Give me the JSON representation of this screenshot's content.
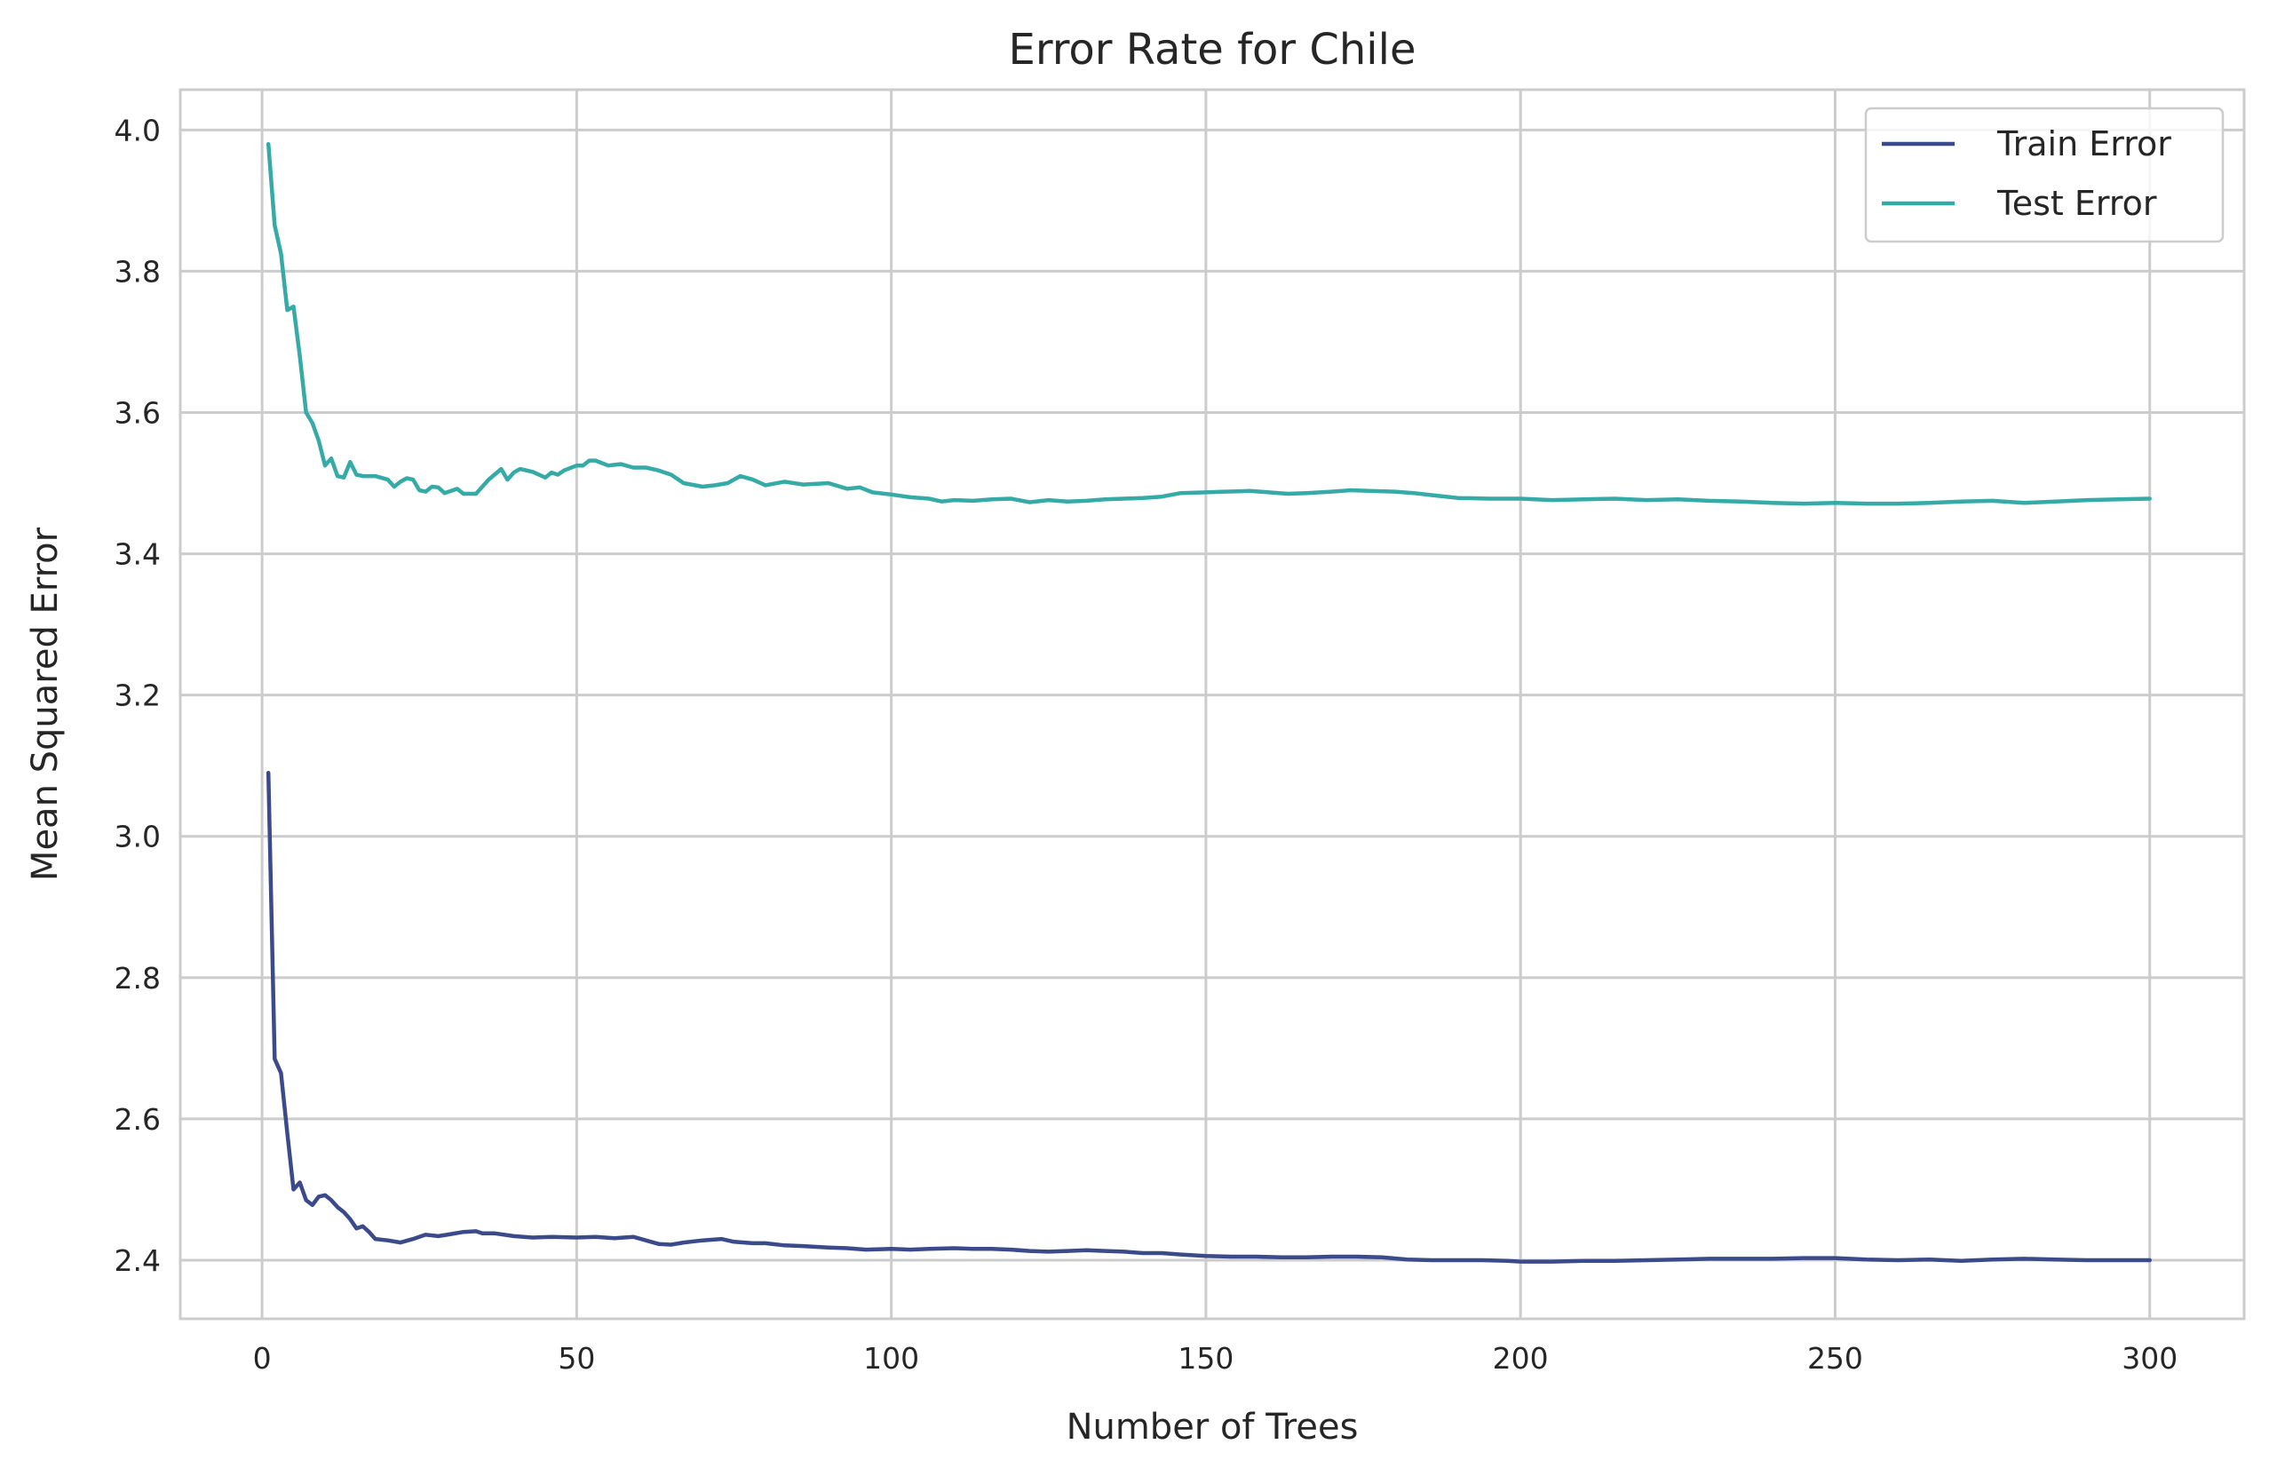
{
  "chart_data": {
    "type": "line",
    "title": "Error Rate for Chile",
    "xlabel": "Number of Trees",
    "ylabel": "Mean Squared Error",
    "xlim": [
      -13,
      315
    ],
    "ylim": [
      2.317,
      4.057
    ],
    "xticks": [
      0,
      50,
      100,
      150,
      200,
      250,
      300
    ],
    "yticks": [
      2.4,
      2.6,
      2.8,
      3.0,
      3.2,
      3.4,
      3.6,
      3.8,
      4.0
    ],
    "grid": true,
    "legend_position": "top-right",
    "colors": {
      "train": "#3b4a8b",
      "test": "#35aaa7",
      "grid": "#cccccc",
      "frame": "#cccccc"
    },
    "series": [
      {
        "name": "Train Error",
        "color": "#3b4a8b",
        "points": [
          [
            1,
            3.09
          ],
          [
            2,
            2.685
          ],
          [
            3,
            2.665
          ],
          [
            4,
            2.58
          ],
          [
            5,
            2.5
          ],
          [
            6,
            2.51
          ],
          [
            7,
            2.485
          ],
          [
            8,
            2.478
          ],
          [
            9,
            2.49
          ],
          [
            10,
            2.492
          ],
          [
            11,
            2.485
          ],
          [
            12,
            2.475
          ],
          [
            13,
            2.468
          ],
          [
            14,
            2.458
          ],
          [
            15,
            2.445
          ],
          [
            16,
            2.448
          ],
          [
            17,
            2.44
          ],
          [
            18,
            2.43
          ],
          [
            20,
            2.428
          ],
          [
            22,
            2.425
          ],
          [
            24,
            2.43
          ],
          [
            26,
            2.436
          ],
          [
            28,
            2.434
          ],
          [
            30,
            2.437
          ],
          [
            32,
            2.44
          ],
          [
            34,
            2.441
          ],
          [
            35,
            2.438
          ],
          [
            37,
            2.438
          ],
          [
            40,
            2.434
          ],
          [
            43,
            2.432
          ],
          [
            46,
            2.433
          ],
          [
            50,
            2.432
          ],
          [
            53,
            2.433
          ],
          [
            56,
            2.431
          ],
          [
            59,
            2.433
          ],
          [
            61,
            2.428
          ],
          [
            63,
            2.423
          ],
          [
            65,
            2.422
          ],
          [
            67,
            2.425
          ],
          [
            70,
            2.428
          ],
          [
            73,
            2.43
          ],
          [
            75,
            2.426
          ],
          [
            78,
            2.424
          ],
          [
            80,
            2.424
          ],
          [
            83,
            2.421
          ],
          [
            86,
            2.42
          ],
          [
            90,
            2.418
          ],
          [
            93,
            2.417
          ],
          [
            96,
            2.415
          ],
          [
            100,
            2.416
          ],
          [
            103,
            2.415
          ],
          [
            106,
            2.416
          ],
          [
            110,
            2.417
          ],
          [
            113,
            2.416
          ],
          [
            116,
            2.416
          ],
          [
            119,
            2.415
          ],
          [
            122,
            2.413
          ],
          [
            125,
            2.412
          ],
          [
            128,
            2.413
          ],
          [
            131,
            2.414
          ],
          [
            134,
            2.413
          ],
          [
            137,
            2.412
          ],
          [
            140,
            2.41
          ],
          [
            143,
            2.41
          ],
          [
            146,
            2.408
          ],
          [
            150,
            2.406
          ],
          [
            154,
            2.405
          ],
          [
            158,
            2.405
          ],
          [
            162,
            2.404
          ],
          [
            166,
            2.404
          ],
          [
            170,
            2.405
          ],
          [
            174,
            2.405
          ],
          [
            178,
            2.404
          ],
          [
            182,
            2.401
          ],
          [
            186,
            2.4
          ],
          [
            190,
            2.4
          ],
          [
            194,
            2.4
          ],
          [
            198,
            2.399
          ],
          [
            200,
            2.398
          ],
          [
            205,
            2.398
          ],
          [
            210,
            2.399
          ],
          [
            215,
            2.399
          ],
          [
            220,
            2.4
          ],
          [
            225,
            2.401
          ],
          [
            230,
            2.402
          ],
          [
            235,
            2.402
          ],
          [
            240,
            2.402
          ],
          [
            245,
            2.403
          ],
          [
            250,
            2.403
          ],
          [
            255,
            2.401
          ],
          [
            260,
            2.4
          ],
          [
            265,
            2.401
          ],
          [
            270,
            2.399
          ],
          [
            275,
            2.401
          ],
          [
            280,
            2.402
          ],
          [
            285,
            2.401
          ],
          [
            290,
            2.4
          ],
          [
            295,
            2.4
          ],
          [
            300,
            2.4
          ]
        ]
      },
      {
        "name": "Test Error",
        "color": "#35aaa7",
        "points": [
          [
            1,
            3.98
          ],
          [
            2,
            3.865
          ],
          [
            3,
            3.825
          ],
          [
            4,
            3.745
          ],
          [
            5,
            3.75
          ],
          [
            6,
            3.68
          ],
          [
            7,
            3.6
          ],
          [
            8,
            3.585
          ],
          [
            9,
            3.56
          ],
          [
            10,
            3.525
          ],
          [
            11,
            3.535
          ],
          [
            12,
            3.51
          ],
          [
            13,
            3.508
          ],
          [
            14,
            3.53
          ],
          [
            15,
            3.512
          ],
          [
            16,
            3.51
          ],
          [
            18,
            3.51
          ],
          [
            20,
            3.505
          ],
          [
            21,
            3.495
          ],
          [
            22,
            3.502
          ],
          [
            23,
            3.507
          ],
          [
            24,
            3.505
          ],
          [
            25,
            3.49
          ],
          [
            26,
            3.488
          ],
          [
            27,
            3.495
          ],
          [
            28,
            3.494
          ],
          [
            29,
            3.486
          ],
          [
            31,
            3.492
          ],
          [
            32,
            3.485
          ],
          [
            34,
            3.485
          ],
          [
            36,
            3.505
          ],
          [
            38,
            3.52
          ],
          [
            39,
            3.505
          ],
          [
            40,
            3.515
          ],
          [
            41,
            3.52
          ],
          [
            43,
            3.516
          ],
          [
            45,
            3.508
          ],
          [
            46,
            3.515
          ],
          [
            47,
            3.512
          ],
          [
            48,
            3.518
          ],
          [
            50,
            3.525
          ],
          [
            51,
            3.525
          ],
          [
            52,
            3.532
          ],
          [
            53,
            3.532
          ],
          [
            55,
            3.525
          ],
          [
            57,
            3.527
          ],
          [
            59,
            3.522
          ],
          [
            61,
            3.522
          ],
          [
            63,
            3.518
          ],
          [
            65,
            3.512
          ],
          [
            67,
            3.5
          ],
          [
            70,
            3.495
          ],
          [
            72,
            3.497
          ],
          [
            74,
            3.5
          ],
          [
            76,
            3.51
          ],
          [
            78,
            3.505
          ],
          [
            80,
            3.497
          ],
          [
            83,
            3.502
          ],
          [
            86,
            3.498
          ],
          [
            90,
            3.5
          ],
          [
            93,
            3.492
          ],
          [
            95,
            3.494
          ],
          [
            97,
            3.487
          ],
          [
            100,
            3.484
          ],
          [
            103,
            3.48
          ],
          [
            106,
            3.478
          ],
          [
            108,
            3.474
          ],
          [
            110,
            3.476
          ],
          [
            113,
            3.475
          ],
          [
            116,
            3.477
          ],
          [
            119,
            3.478
          ],
          [
            122,
            3.473
          ],
          [
            125,
            3.476
          ],
          [
            128,
            3.474
          ],
          [
            131,
            3.475
          ],
          [
            134,
            3.477
          ],
          [
            137,
            3.478
          ],
          [
            140,
            3.479
          ],
          [
            143,
            3.481
          ],
          [
            146,
            3.486
          ],
          [
            150,
            3.487
          ],
          [
            153,
            3.488
          ],
          [
            157,
            3.489
          ],
          [
            160,
            3.487
          ],
          [
            163,
            3.485
          ],
          [
            166,
            3.486
          ],
          [
            170,
            3.488
          ],
          [
            173,
            3.49
          ],
          [
            176,
            3.489
          ],
          [
            180,
            3.488
          ],
          [
            183,
            3.486
          ],
          [
            186,
            3.483
          ],
          [
            190,
            3.479
          ],
          [
            195,
            3.478
          ],
          [
            200,
            3.478
          ],
          [
            205,
            3.476
          ],
          [
            210,
            3.477
          ],
          [
            215,
            3.478
          ],
          [
            220,
            3.476
          ],
          [
            225,
            3.477
          ],
          [
            230,
            3.475
          ],
          [
            235,
            3.474
          ],
          [
            240,
            3.472
          ],
          [
            245,
            3.471
          ],
          [
            250,
            3.472
          ],
          [
            255,
            3.471
          ],
          [
            260,
            3.471
          ],
          [
            265,
            3.472
          ],
          [
            270,
            3.474
          ],
          [
            275,
            3.475
          ],
          [
            280,
            3.472
          ],
          [
            285,
            3.474
          ],
          [
            290,
            3.476
          ],
          [
            295,
            3.477
          ],
          [
            300,
            3.478
          ]
        ]
      }
    ]
  }
}
